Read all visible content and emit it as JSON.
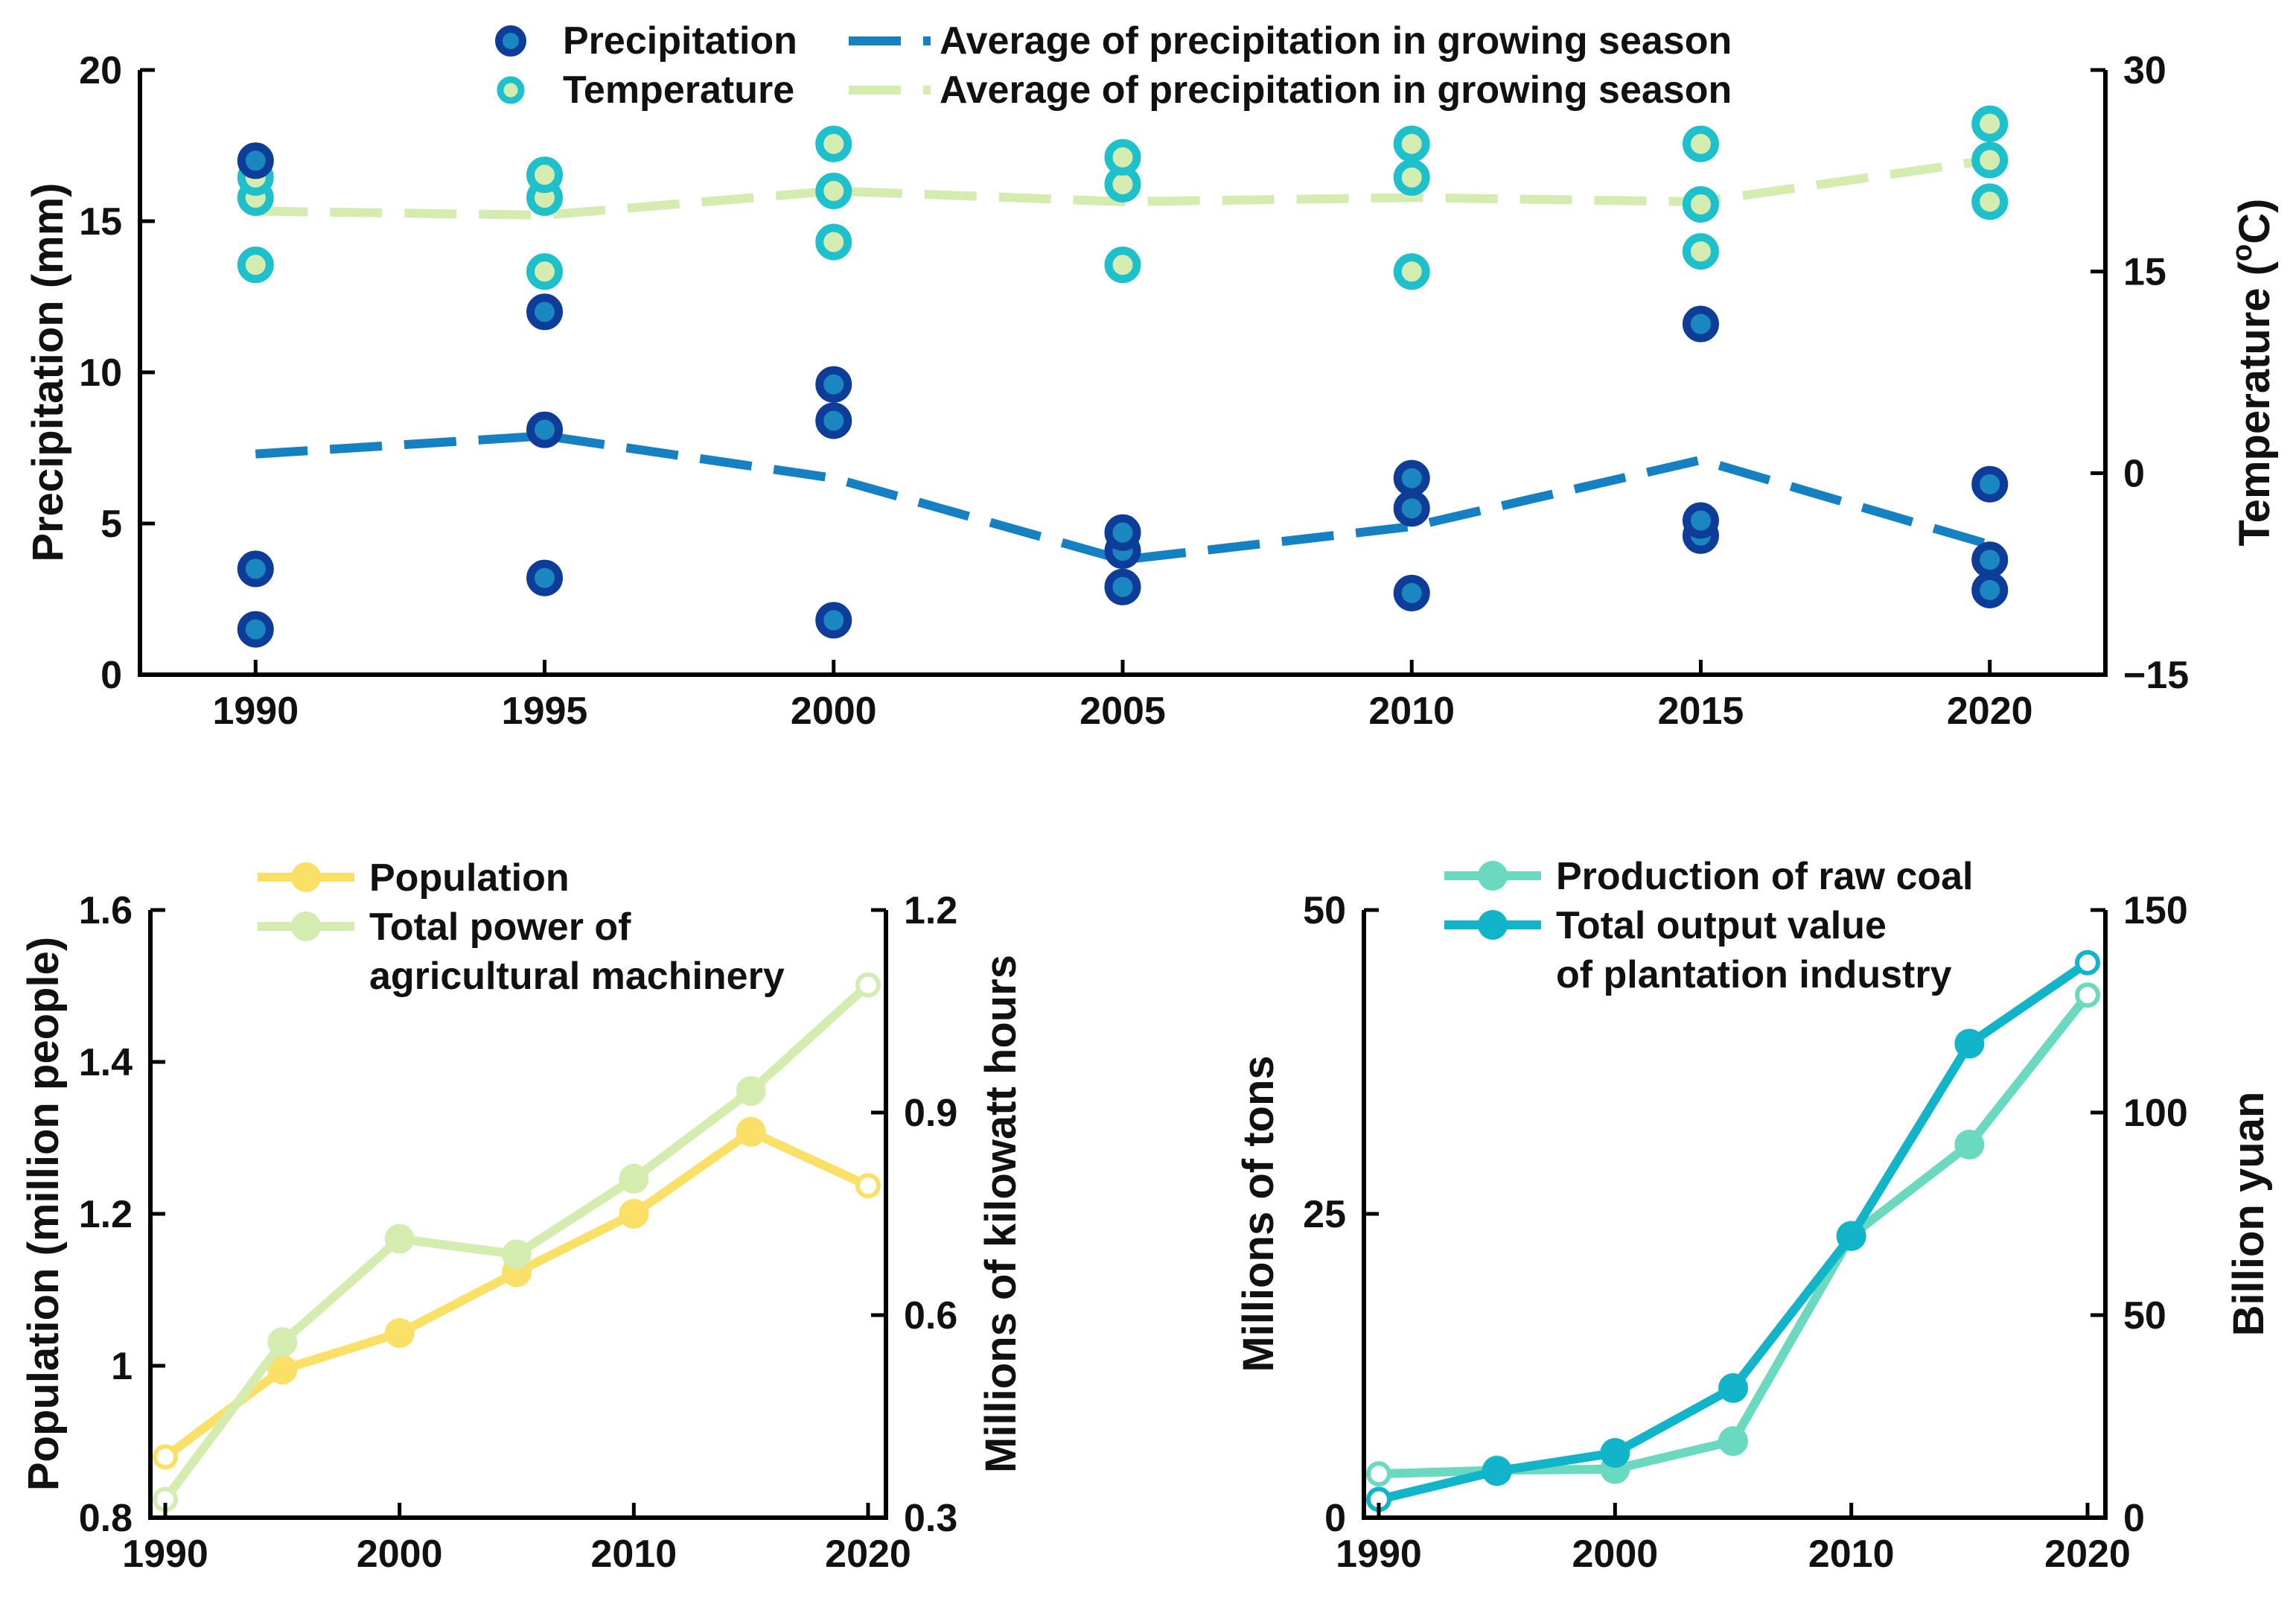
{
  "colors": {
    "axis": "#000000",
    "precip_fill": "#0d3d99",
    "precip_inner": "#1b87c1",
    "temp_ring": "#1ec0cc",
    "temp_inner": "#d4ecb0",
    "precip_avg": "#1580c2",
    "temp_avg": "#d4ecb0",
    "population": "#fbe068",
    "machinery": "#d4ecb0",
    "coal": "#6ad9bf",
    "plantation": "#12b4c9"
  },
  "chart_data": [
    {
      "id": "top",
      "type": "scatter",
      "title": "",
      "xlabel": "",
      "ylabel": "Precipitation (mm)",
      "y2label": "Temperature (°C)",
      "y2label_main": "Temperature (",
      "y2label_sup": "o",
      "y2label_tail": "C)",
      "categories": [
        "1990",
        "1995",
        "2000",
        "2005",
        "2010",
        "2015",
        "2020"
      ],
      "x": [
        1990,
        1995,
        2000,
        2005,
        2010,
        2015,
        2020
      ],
      "ylim": [
        0,
        20
      ],
      "y2lim": [
        -15,
        30
      ],
      "yticks": [
        "0",
        "5",
        "10",
        "15",
        "20"
      ],
      "y2ticks": [
        "−15",
        "0",
        "15",
        "30"
      ],
      "legend": [
        "Precipitation",
        "Temperature",
        "Average of precipitation in growing season",
        "Average of precipitation in growing season"
      ],
      "series": [
        {
          "name": "Precipitation",
          "axis": "left",
          "style": "markers",
          "values": [
            [
              1.5,
              3.5,
              17.0
            ],
            [
              3.2,
              8.1,
              12.0
            ],
            [
              1.8,
              8.4,
              9.6
            ],
            [
              2.9,
              4.1,
              4.7
            ],
            [
              2.7,
              5.5,
              6.5
            ],
            [
              4.6,
              5.1,
              11.6
            ],
            [
              2.8,
              3.8,
              6.3
            ]
          ]
        },
        {
          "name": "Temperature",
          "axis": "right",
          "style": "markers",
          "values": [
            [
              15.5,
              20.5,
              22.0
            ],
            [
              15.0,
              20.5,
              22.2
            ],
            [
              17.2,
              21.0,
              24.5
            ],
            [
              15.5,
              21.5,
              23.5
            ],
            [
              15.0,
              22.0,
              24.5
            ],
            [
              16.5,
              20.0,
              24.5
            ],
            [
              20.2,
              23.3,
              26.0
            ]
          ]
        },
        {
          "name": "Average of precipitation in growing season",
          "axis": "left",
          "style": "dashed",
          "values": [
            7.3,
            7.9,
            6.5,
            3.8,
            4.9,
            7.1,
            4.3
          ]
        },
        {
          "name": "Average of precipitation in growing season",
          "axis": "right",
          "style": "dashed",
          "values": [
            19.5,
            19.2,
            21.0,
            20.2,
            20.5,
            20.2,
            23.3
          ]
        }
      ]
    },
    {
      "id": "bottom-left",
      "type": "line",
      "title": "",
      "xlabel": "",
      "ylabel": "Population (million people)",
      "y2label": "Millions of kilowatt hours",
      "x": [
        1990,
        1995,
        2000,
        2005,
        2010,
        2015,
        2020
      ],
      "xticks": [
        "1990",
        "2000",
        "2010",
        "2020"
      ],
      "ylim": [
        0.8,
        1.6
      ],
      "y2lim": [
        0.3,
        1.2
      ],
      "yticks": [
        "0.8",
        "1",
        "1.2",
        "1.4",
        "1.6"
      ],
      "y2ticks": [
        "0.3",
        "0.6",
        "0.9",
        "1.2"
      ],
      "legend": [
        "Population",
        "Total power of",
        "agricultural machinery"
      ],
      "series": [
        {
          "name": "Population",
          "axis": "left",
          "values": [
            0.88,
            0.995,
            1.043,
            1.123,
            1.2,
            1.308,
            1.237
          ]
        },
        {
          "name": "Total power of agricultural machinery",
          "axis": "right",
          "values": [
            0.327,
            0.56,
            0.713,
            0.69,
            0.802,
            0.932,
            1.089
          ]
        }
      ]
    },
    {
      "id": "bottom-right",
      "type": "line",
      "title": "",
      "xlabel": "",
      "ylabel": "Millions of tons",
      "y2label": "Billion yuan",
      "x": [
        1990,
        1995,
        2000,
        2005,
        2010,
        2015,
        2020
      ],
      "xticks": [
        "1990",
        "2000",
        "2010",
        "2020"
      ],
      "ylim": [
        0,
        50
      ],
      "y2lim": [
        0,
        150
      ],
      "yticks": [
        "0",
        "25",
        "50"
      ],
      "y2ticks": [
        "0",
        "50",
        "100",
        "150"
      ],
      "legend": [
        "Production of raw coal",
        "Total output value",
        " of plantation industry"
      ],
      "series": [
        {
          "name": "Production of raw coal",
          "axis": "left",
          "values": [
            3.6,
            3.9,
            4.0,
            6.3,
            23.2,
            30.7,
            43.0
          ]
        },
        {
          "name": "Total output value of plantation industry",
          "axis": "right",
          "values": [
            4.5,
            11.5,
            16.0,
            32.0,
            69.5,
            117.0,
            137.0
          ]
        }
      ]
    }
  ]
}
